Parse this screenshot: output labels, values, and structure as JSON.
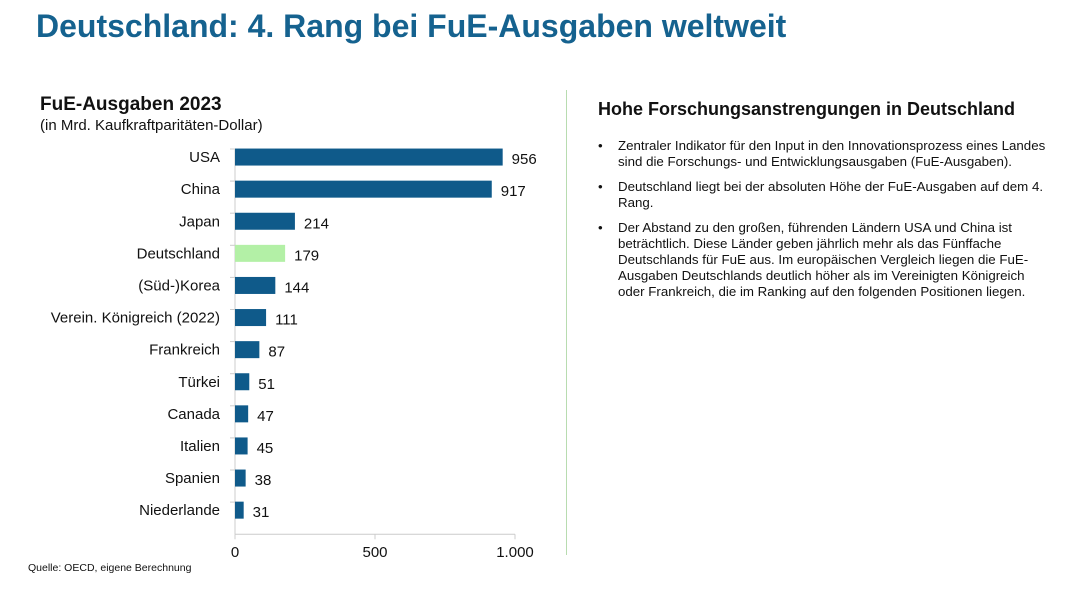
{
  "title": "Deutschland: 4. Rang bei FuE-Ausgaben weltweit",
  "chart_data": {
    "type": "bar",
    "orientation": "horizontal",
    "title": "FuE-Ausgaben 2023",
    "subtitle": "(in Mrd. Kaufkraftparitäten-Dollar)",
    "categories": [
      "USA",
      "China",
      "Japan",
      "Deutschland",
      "(Süd-)Korea",
      "Verein. Königreich  (2022)",
      "Frankreich",
      "Türkei",
      "Canada",
      "Italien",
      "Spanien",
      "Niederlande"
    ],
    "values": [
      956,
      917,
      214,
      179,
      144,
      111,
      87,
      51,
      47,
      45,
      38,
      31
    ],
    "value_labels": [
      "956",
      "917",
      "214",
      "179",
      "144",
      "111",
      "87",
      "51",
      "47",
      "45",
      "38",
      "31"
    ],
    "xlim": [
      0,
      1000
    ],
    "xticks": [
      0,
      500,
      1000
    ],
    "xtick_labels": [
      "0",
      "500",
      "1.000"
    ],
    "grid": false,
    "colors": {
      "default": "#0f5a8a",
      "highlight": "#b3f0a6"
    },
    "highlight_category": "Deutschland"
  },
  "right": {
    "title": "Hohe Forschungsanstrengungen in Deutschland",
    "bullets": [
      "Zentraler Indikator für den Input in den Innovationsprozess eines Landes sind die Forschungs- und Entwicklungsausgaben (FuE-Ausgaben).",
      "Deutschland liegt bei der absoluten Höhe der FuE-Ausgaben auf dem 4. Rang.",
      "Der Abstand zu den großen, führenden Ländern USA und China ist beträchtlich. Diese Länder geben jährlich mehr als das Fünffache Deutschlands für FuE aus. Im europäischen Vergleich liegen die FuE-Ausgaben Deutschlands deutlich höher als im Vereinigten Königreich oder Frankreich, die im Ranking auf den folgenden Positionen liegen."
    ],
    "bullet_glyph": "•"
  },
  "source": "Quelle: OECD, eigene Berechnung"
}
